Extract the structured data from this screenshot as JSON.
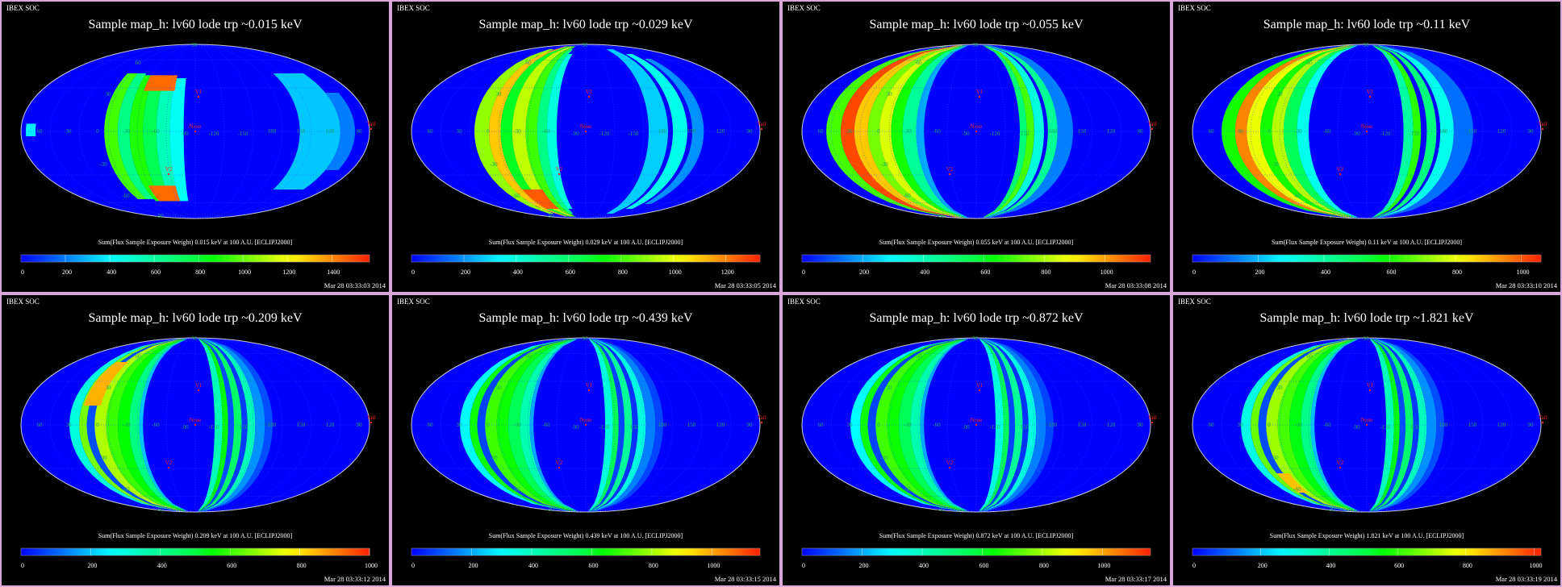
{
  "header_label": "IBEX SOC",
  "grid_labels": {
    "lon": [
      "60",
      "30",
      "0",
      "-30",
      "-60",
      "-90",
      "-120",
      "-150",
      "180",
      "150",
      "120",
      "90"
    ],
    "lat": [
      {
        "text": "90",
        "x": 241,
        "y": 58
      },
      {
        "text": "60",
        "x": 171,
        "y": 80
      },
      {
        "text": "30",
        "x": 134,
        "y": 119
      },
      {
        "text": "-30",
        "x": 128,
        "y": 206
      },
      {
        "text": "-60",
        "x": 156,
        "y": 245
      },
      {
        "text": "-90",
        "x": 198,
        "y": 270
      }
    ],
    "markers": [
      {
        "text": "Nose",
        "x": 242,
        "y": 163
      },
      {
        "text": "V1",
        "x": 246,
        "y": 120
      },
      {
        "text": "V2",
        "x": 209,
        "y": 216
      },
      {
        "text": "Tail",
        "x": 460,
        "y": 160
      }
    ]
  },
  "colors": {
    "border": "#d9a6d9",
    "sky": "#0000ff",
    "grid": "#2a4cff",
    "marker": "#ff2020",
    "label": "#1fa060"
  },
  "chart_data": [
    {
      "type": "heatmap",
      "title": "Sample map_h: lv60 lode trp ~0.015 keV",
      "caption": "Sum(Flux Sample Exposure Weight)  0.015 keV at 100 A.U. [ECLIPJ2000]",
      "timestamp": "Mar 28 03:33:03 2014",
      "range": [
        0,
        1570
      ],
      "ticks": [
        "0",
        "200",
        "400",
        "600",
        "800",
        "1000",
        "1200",
        "1400"
      ],
      "bands": [
        [
          -94,
          -80,
          -70,
          60,
          950
        ],
        [
          -80,
          -68,
          -70,
          60,
          650
        ],
        [
          -68,
          -54,
          -72,
          58,
          900
        ],
        [
          -54,
          -40,
          -72,
          58,
          750
        ],
        [
          -40,
          -26,
          -72,
          56,
          550
        ],
        [
          -26,
          -12,
          -72,
          55,
          420
        ],
        [
          -60,
          -24,
          42,
          58,
          1450
        ],
        [
          -62,
          -26,
          -72,
          -56,
          1450
        ],
        [
          108,
          150,
          -60,
          60,
          320
        ],
        [
          150,
          165,
          -40,
          40,
          200
        ],
        [
          -175,
          -165,
          -5,
          8,
          380
        ]
      ]
    },
    {
      "type": "heatmap",
      "title": "Sample map_h: lv60 lode trp ~0.029 keV",
      "caption": "Sum(Flux Sample Exposure Weight)  0.029 keV at 100 A.U. [ECLIPJ2000]",
      "timestamp": "Mar 28 03:33:05 2014",
      "range": [
        0,
        1330
      ],
      "ticks": [
        "0",
        "200",
        "400",
        "600",
        "800",
        "1000",
        "1200"
      ],
      "bands": [
        [
          -115,
          -100,
          -85,
          85,
          900
        ],
        [
          -100,
          -88,
          -88,
          88,
          1100
        ],
        [
          -88,
          -76,
          -88,
          88,
          700
        ],
        [
          -76,
          -62,
          -88,
          88,
          950
        ],
        [
          -62,
          -50,
          -88,
          88,
          800
        ],
        [
          -50,
          -40,
          -85,
          85,
          550
        ],
        [
          -40,
          -30,
          -80,
          80,
          400
        ],
        [
          -88,
          -60,
          -80,
          -60,
          1250
        ],
        [
          65,
          85,
          -85,
          85,
          280
        ],
        [
          90,
          105,
          -80,
          80,
          380
        ],
        [
          110,
          122,
          -75,
          75,
          200
        ]
      ]
    },
    {
      "type": "heatmap",
      "title": "Sample map_h: lv60 lode trp ~0.055 keV",
      "caption": "Sum(Flux Sample Exposure Weight)  0.055 keV at 100 A.U. [ECLIPJ2000]",
      "timestamp": "Mar 28 03:33:08 2014",
      "range": [
        0,
        1150
      ],
      "ticks": [
        "0",
        "200",
        "400",
        "600",
        "800",
        "1000"
      ],
      "bands": [
        [
          -155,
          -140,
          -88,
          88,
          700
        ],
        [
          -140,
          -126,
          -89,
          89,
          1100
        ],
        [
          -126,
          -112,
          -89,
          89,
          950
        ],
        [
          -112,
          -100,
          -89,
          89,
          750
        ],
        [
          -100,
          -88,
          -89,
          89,
          850
        ],
        [
          -88,
          -76,
          -89,
          89,
          650
        ],
        [
          -76,
          -62,
          -89,
          89,
          450
        ],
        [
          -62,
          -54,
          -89,
          89,
          200
        ],
        [
          45,
          52,
          -89,
          89,
          500
        ],
        [
          52,
          60,
          -89,
          89,
          700
        ],
        [
          60,
          70,
          -89,
          89,
          350
        ],
        [
          74,
          84,
          -89,
          89,
          450
        ],
        [
          84,
          100,
          -89,
          89,
          150
        ]
      ]
    },
    {
      "type": "heatmap",
      "title": "Sample map_h: lv60 lode trp ~0.11 keV",
      "caption": "Sum(Flux Sample Exposure Weight)  0.11 keV at 100 A.U. [ECLIPJ2000]",
      "timestamp": "Mar 28 03:33:10 2014",
      "range": [
        0,
        1060
      ],
      "ticks": [
        "0",
        "200",
        "400",
        "600",
        "800",
        "1000"
      ],
      "bands": [
        [
          -150,
          -136,
          -89,
          89,
          600
        ],
        [
          -136,
          -124,
          -89,
          89,
          950
        ],
        [
          -124,
          -110,
          -89,
          89,
          800
        ],
        [
          -110,
          -98,
          -89,
          89,
          600
        ],
        [
          -98,
          -86,
          -89,
          89,
          750
        ],
        [
          -86,
          -72,
          -89,
          89,
          500
        ],
        [
          -72,
          -60,
          -89,
          89,
          300
        ],
        [
          38,
          48,
          -89,
          89,
          400
        ],
        [
          48,
          56,
          -89,
          89,
          620
        ],
        [
          62,
          72,
          -89,
          89,
          450
        ],
        [
          76,
          90,
          -89,
          89,
          300
        ],
        [
          90,
          110,
          -89,
          89,
          120
        ]
      ]
    },
    {
      "type": "heatmap",
      "title": "Sample map_h: lv60 lode trp ~0.209 keV",
      "caption": "Sum(Flux Sample Exposure Weight)  0.209 keV at 100 A.U. [ECLIPJ2000]",
      "timestamp": "Mar 28 03:33:12 2014",
      "range": [
        0,
        1000
      ],
      "ticks": [
        "0",
        "200",
        "400",
        "600",
        "800",
        "1000"
      ],
      "bands": [
        [
          -130,
          -120,
          -89,
          89,
          300
        ],
        [
          -120,
          -112,
          -89,
          89,
          650
        ],
        [
          -112,
          -104,
          -89,
          89,
          80
        ],
        [
          -104,
          -92,
          -89,
          89,
          700
        ],
        [
          -92,
          -80,
          -89,
          89,
          600
        ],
        [
          -80,
          -68,
          -89,
          89,
          550
        ],
        [
          -68,
          -58,
          -89,
          89,
          420
        ],
        [
          -58,
          -54,
          -89,
          89,
          200
        ],
        [
          -118,
          -100,
          20,
          65,
          850
        ],
        [
          20,
          28,
          -89,
          89,
          350
        ],
        [
          28,
          34,
          -89,
          89,
          550
        ],
        [
          34,
          40,
          -89,
          89,
          80
        ],
        [
          40,
          48,
          -89,
          89,
          450
        ],
        [
          48,
          54,
          -89,
          89,
          60
        ],
        [
          54,
          62,
          -89,
          89,
          350
        ],
        [
          62,
          72,
          -89,
          89,
          150
        ],
        [
          72,
          80,
          -89,
          89,
          80
        ]
      ]
    },
    {
      "type": "heatmap",
      "title": "Sample map_h: lv60 lode trp ~0.439 keV",
      "caption": "Sum(Flux Sample Exposure Weight)  0.439 keV at 100 A.U. [ECLIPJ2000]",
      "timestamp": "Mar 28 03:33:15 2014",
      "range": [
        0,
        1160
      ],
      "ticks": [
        "0",
        "200",
        "400",
        "600",
        "800",
        "1000"
      ],
      "bands": [
        [
          -130,
          -120,
          -89,
          89,
          300
        ],
        [
          -120,
          -112,
          -89,
          89,
          650
        ],
        [
          -112,
          -104,
          -89,
          89,
          80
        ],
        [
          -104,
          -92,
          -89,
          89,
          700
        ],
        [
          -92,
          -80,
          -89,
          89,
          650
        ],
        [
          -80,
          -68,
          -89,
          89,
          550
        ],
        [
          -68,
          -58,
          -89,
          89,
          420
        ],
        [
          -58,
          -54,
          -89,
          89,
          200
        ],
        [
          20,
          28,
          -89,
          89,
          350
        ],
        [
          28,
          34,
          -89,
          89,
          550
        ],
        [
          34,
          40,
          -89,
          89,
          80
        ],
        [
          40,
          48,
          -89,
          89,
          450
        ],
        [
          48,
          54,
          -89,
          89,
          60
        ],
        [
          54,
          62,
          -89,
          89,
          350
        ],
        [
          62,
          72,
          -89,
          89,
          150
        ],
        [
          72,
          80,
          -89,
          89,
          80
        ]
      ]
    },
    {
      "type": "heatmap",
      "title": "Sample map_h: lv60 lode trp ~0.872 keV",
      "caption": "Sum(Flux Sample Exposure Weight)  0.872 keV at 100 A.U. [ECLIPJ2000]",
      "timestamp": "Mar 28 03:33:17 2014",
      "range": [
        0,
        1160
      ],
      "ticks": [
        "0",
        "200",
        "400",
        "600",
        "800",
        "1000"
      ],
      "bands": [
        [
          -130,
          -120,
          -89,
          89,
          300
        ],
        [
          -120,
          -112,
          -89,
          89,
          650
        ],
        [
          -112,
          -104,
          -89,
          89,
          80
        ],
        [
          -104,
          -92,
          -89,
          89,
          700
        ],
        [
          -92,
          -80,
          -89,
          89,
          650
        ],
        [
          -80,
          -68,
          -89,
          89,
          550
        ],
        [
          -68,
          -58,
          -89,
          89,
          420
        ],
        [
          -58,
          -54,
          -89,
          89,
          200
        ],
        [
          20,
          28,
          -89,
          89,
          350
        ],
        [
          28,
          34,
          -89,
          89,
          550
        ],
        [
          34,
          40,
          -89,
          89,
          80
        ],
        [
          40,
          48,
          -89,
          89,
          450
        ],
        [
          48,
          54,
          -89,
          89,
          60
        ],
        [
          54,
          62,
          -89,
          89,
          350
        ],
        [
          62,
          72,
          -89,
          89,
          150
        ],
        [
          72,
          80,
          -89,
          89,
          80
        ]
      ]
    },
    {
      "type": "heatmap",
      "title": "Sample map_h: lv60 lode trp ~1.821 keV",
      "caption": "Sum(Flux Sample Exposure Weight)  1.821 keV at 100 A.U. [ECLIPJ2000]",
      "timestamp": "Mar 28 03:33:19 2014",
      "range": [
        0,
        1020
      ],
      "ticks": [
        "0",
        "200",
        "400",
        "600",
        "800",
        "1000"
      ],
      "bands": [
        [
          -130,
          -120,
          -89,
          89,
          300
        ],
        [
          -120,
          -112,
          -89,
          89,
          650
        ],
        [
          -112,
          -104,
          -89,
          89,
          80
        ],
        [
          -104,
          -92,
          -89,
          89,
          700
        ],
        [
          -92,
          -80,
          -89,
          89,
          620
        ],
        [
          -80,
          -68,
          -89,
          89,
          550
        ],
        [
          -68,
          -58,
          -89,
          89,
          420
        ],
        [
          -58,
          -54,
          -89,
          89,
          200
        ],
        [
          -112,
          -96,
          -70,
          -50,
          850
        ],
        [
          20,
          28,
          -89,
          89,
          350
        ],
        [
          28,
          34,
          -89,
          89,
          550
        ],
        [
          34,
          40,
          -89,
          89,
          80
        ],
        [
          40,
          48,
          -89,
          89,
          450
        ],
        [
          48,
          54,
          -89,
          89,
          60
        ],
        [
          54,
          62,
          -89,
          89,
          350
        ],
        [
          62,
          72,
          -89,
          89,
          150
        ],
        [
          72,
          80,
          -89,
          89,
          80
        ]
      ]
    }
  ]
}
